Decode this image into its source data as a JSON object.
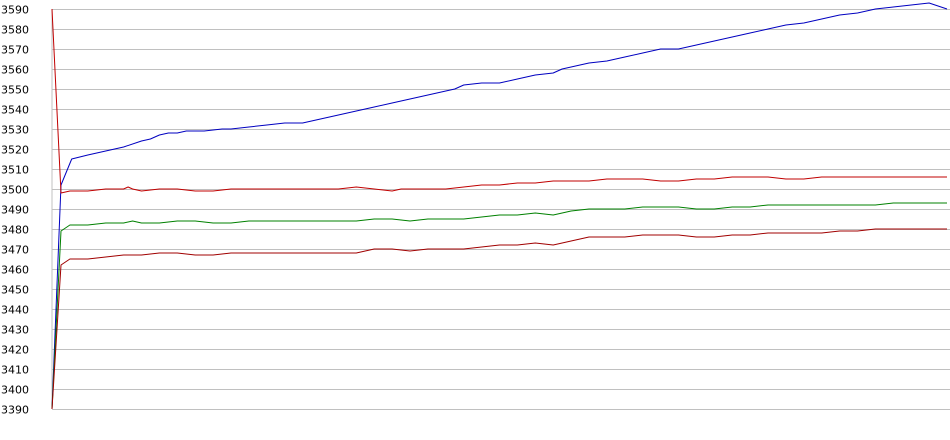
{
  "chart_data": {
    "type": "line",
    "title": "",
    "xlabel": "",
    "ylabel": "",
    "ylim": [
      3390,
      3590
    ],
    "y_ticks": [
      3590,
      3580,
      3570,
      3560,
      3550,
      3540,
      3530,
      3520,
      3510,
      3500,
      3490,
      3480,
      3470,
      3460,
      3450,
      3440,
      3430,
      3420,
      3410,
      3400,
      3390
    ],
    "grid": true,
    "legend": "none",
    "x_ticks_shown": false,
    "x_range": [
      0,
      100
    ],
    "series": [
      {
        "color": "#0000c0",
        "x": [
          0,
          1,
          2.2,
          4,
          6,
          8,
          10,
          11,
          12,
          13,
          14,
          15,
          17,
          19,
          20,
          22,
          24,
          26,
          28,
          30,
          32,
          34,
          36,
          38,
          40,
          42,
          44,
          45,
          46,
          48,
          50,
          52,
          54,
          56,
          57,
          58,
          59,
          60,
          62,
          64,
          66,
          68,
          70,
          72,
          74,
          76,
          78,
          80,
          82,
          84,
          86,
          88,
          90,
          91,
          92,
          94,
          96,
          98,
          100
        ],
        "values": [
          3390,
          3502,
          3515,
          3517,
          3519,
          3521,
          3524,
          3525,
          3527,
          3528,
          3528,
          3529,
          3529,
          3530,
          3530,
          3531,
          3532,
          3533,
          3533,
          3535,
          3537,
          3539,
          3541,
          3543,
          3545,
          3547,
          3549,
          3550,
          3552,
          3553,
          3553,
          3555,
          3557,
          3558,
          3560,
          3561,
          3562,
          3563,
          3564,
          3566,
          3568,
          3570,
          3570,
          3572,
          3574,
          3576,
          3578,
          3580,
          3582,
          3583,
          3585,
          3587,
          3588,
          3589,
          3590,
          3591,
          3592,
          3593,
          3590
        ]
      },
      {
        "color": "#c00000",
        "x": [
          0,
          1,
          2,
          4,
          6,
          8,
          8.5,
          9,
          10,
          12,
          14,
          16,
          18,
          20,
          22,
          24,
          26,
          28,
          30,
          32,
          34,
          36,
          38,
          39,
          40,
          42,
          44,
          46,
          48,
          50,
          52,
          54,
          56,
          58,
          60,
          62,
          64,
          66,
          68,
          70,
          72,
          74,
          76,
          78,
          80,
          82,
          84,
          86,
          88,
          90,
          92,
          94,
          96,
          98,
          100
        ],
        "values": [
          3590,
          3498,
          3499,
          3499,
          3500,
          3500,
          3501,
          3500,
          3499,
          3500,
          3500,
          3499,
          3499,
          3500,
          3500,
          3500,
          3500,
          3500,
          3500,
          3500,
          3501,
          3500,
          3499,
          3500,
          3500,
          3500,
          3500,
          3501,
          3502,
          3502,
          3503,
          3503,
          3504,
          3504,
          3504,
          3505,
          3505,
          3505,
          3504,
          3504,
          3505,
          3505,
          3506,
          3506,
          3506,
          3505,
          3505,
          3506,
          3506,
          3506,
          3506,
          3506,
          3506,
          3506,
          3506
        ]
      },
      {
        "color": "#008000",
        "x": [
          0,
          1,
          2,
          4,
          6,
          8,
          9,
          10,
          12,
          14,
          16,
          18,
          20,
          22,
          24,
          26,
          28,
          30,
          32,
          34,
          36,
          38,
          40,
          42,
          44,
          46,
          48,
          50,
          52,
          54,
          56,
          58,
          60,
          62,
          64,
          66,
          68,
          70,
          72,
          74,
          76,
          78,
          80,
          82,
          84,
          86,
          88,
          90,
          92,
          94,
          96,
          98,
          100
        ],
        "values": [
          3390,
          3479,
          3482,
          3482,
          3483,
          3483,
          3484,
          3483,
          3483,
          3484,
          3484,
          3483,
          3483,
          3484,
          3484,
          3484,
          3484,
          3484,
          3484,
          3484,
          3485,
          3485,
          3484,
          3485,
          3485,
          3485,
          3486,
          3487,
          3487,
          3488,
          3487,
          3489,
          3490,
          3490,
          3490,
          3491,
          3491,
          3491,
          3490,
          3490,
          3491,
          3491,
          3492,
          3492,
          3492,
          3492,
          3492,
          3492,
          3492,
          3493,
          3493,
          3493,
          3493
        ]
      },
      {
        "color": "#a00000",
        "x": [
          0,
          1,
          2,
          4,
          6,
          8,
          10,
          12,
          14,
          16,
          18,
          20,
          22,
          24,
          26,
          28,
          30,
          32,
          34,
          36,
          38,
          40,
          42,
          44,
          46,
          48,
          50,
          52,
          54,
          56,
          58,
          60,
          62,
          64,
          66,
          68,
          70,
          72,
          74,
          76,
          78,
          80,
          82,
          84,
          86,
          88,
          90,
          92,
          94,
          96,
          98,
          100
        ],
        "values": [
          3390,
          3462,
          3465,
          3465,
          3466,
          3467,
          3467,
          3468,
          3468,
          3467,
          3467,
          3468,
          3468,
          3468,
          3468,
          3468,
          3468,
          3468,
          3468,
          3470,
          3470,
          3469,
          3470,
          3470,
          3470,
          3471,
          3472,
          3472,
          3473,
          3472,
          3474,
          3476,
          3476,
          3476,
          3477,
          3477,
          3477,
          3476,
          3476,
          3477,
          3477,
          3478,
          3478,
          3478,
          3478,
          3479,
          3479,
          3480,
          3480,
          3480,
          3480,
          3480
        ]
      }
    ]
  }
}
